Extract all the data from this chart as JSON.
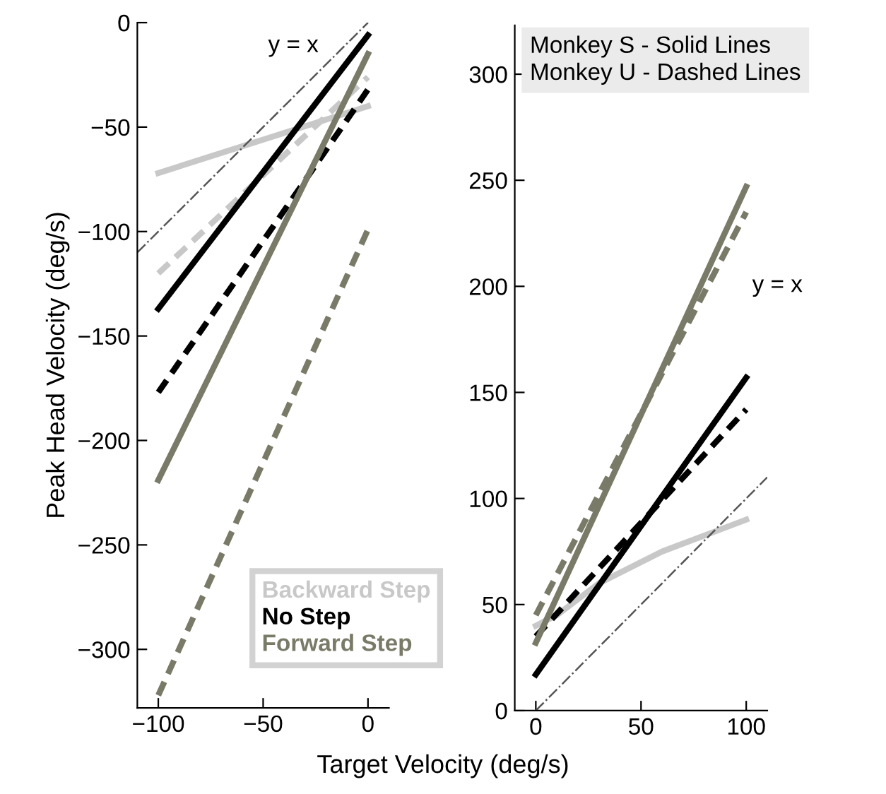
{
  "chart_data": [
    {
      "type": "line",
      "ylabel": "Peak Head Velocity (deg/s)",
      "xlabel": "Target Velocity (deg/s)",
      "xlim": [
        -110,
        10
      ],
      "ylim": [
        -328,
        0
      ],
      "xticks": [
        -100,
        -50,
        0
      ],
      "yticks": [
        -300,
        -250,
        -200,
        -150,
        -100,
        -50,
        0
      ],
      "grid": false,
      "legend": "bottom right",
      "marker": "none",
      "series": [
        {
          "name": "Backward Step",
          "color": "#c8c8c8",
          "x": [
            -100,
            0
          ],
          "values": [
            -72,
            -40
          ],
          "line_style": "solid"
        },
        {
          "color": "#c8c8c8",
          "x": [
            -100,
            0
          ],
          "values": [
            -120,
            -26
          ],
          "line_style": "dashed"
        },
        {
          "name": "No Step",
          "color": "#000000",
          "x": [
            -100,
            0
          ],
          "values": [
            -137,
            -6
          ],
          "line_style": "solid"
        },
        {
          "color": "#000000",
          "x": [
            -100,
            0
          ],
          "values": [
            -177,
            -32
          ],
          "line_style": "dashed"
        },
        {
          "name": "Forward Step",
          "color": "#7a7a68",
          "x": [
            -100,
            0
          ],
          "values": [
            -219,
            -15
          ],
          "line_style": "solid"
        },
        {
          "color": "#7a7a68",
          "x": [
            -100,
            0
          ],
          "values": [
            -322,
            -99
          ],
          "line_style": "dashed"
        },
        {
          "color": "#555555",
          "x": [
            -110,
            0
          ],
          "values": [
            -110,
            0
          ],
          "line_style": "dashdot"
        }
      ],
      "annotations": [
        "y = x"
      ]
    },
    {
      "type": "line",
      "xlim": [
        -10,
        110
      ],
      "ylim": [
        0,
        323
      ],
      "xticks": [
        0,
        50,
        100
      ],
      "yticks": [
        0,
        50,
        100,
        150,
        200,
        250,
        300
      ],
      "grid": false,
      "marker": "none",
      "series": [
        {
          "color": "#c8c8c8",
          "x": [
            0,
            10,
            30,
            60,
            100
          ],
          "values": [
            40,
            45,
            60,
            75,
            90
          ],
          "line_style": "solid"
        },
        {
          "color": "#000000",
          "x": [
            0,
            100
          ],
          "values": [
            17,
            157
          ],
          "line_style": "solid"
        },
        {
          "color": "#000000",
          "x": [
            0,
            100
          ],
          "values": [
            35,
            142
          ],
          "line_style": "dashed"
        },
        {
          "color": "#7a7a68",
          "x": [
            0,
            100
          ],
          "values": [
            32,
            247
          ],
          "line_style": "solid"
        },
        {
          "color": "#7a7a68",
          "x": [
            0,
            100
          ],
          "values": [
            45,
            235
          ],
          "line_style": "dashed"
        },
        {
          "color": "#555555",
          "x": [
            0,
            110
          ],
          "values": [
            0,
            110
          ],
          "line_style": "dashdot"
        }
      ],
      "annotations": [
        "y = x",
        "Monkey S - Solid Lines\nMonkey U - Dashed Lines"
      ]
    }
  ]
}
